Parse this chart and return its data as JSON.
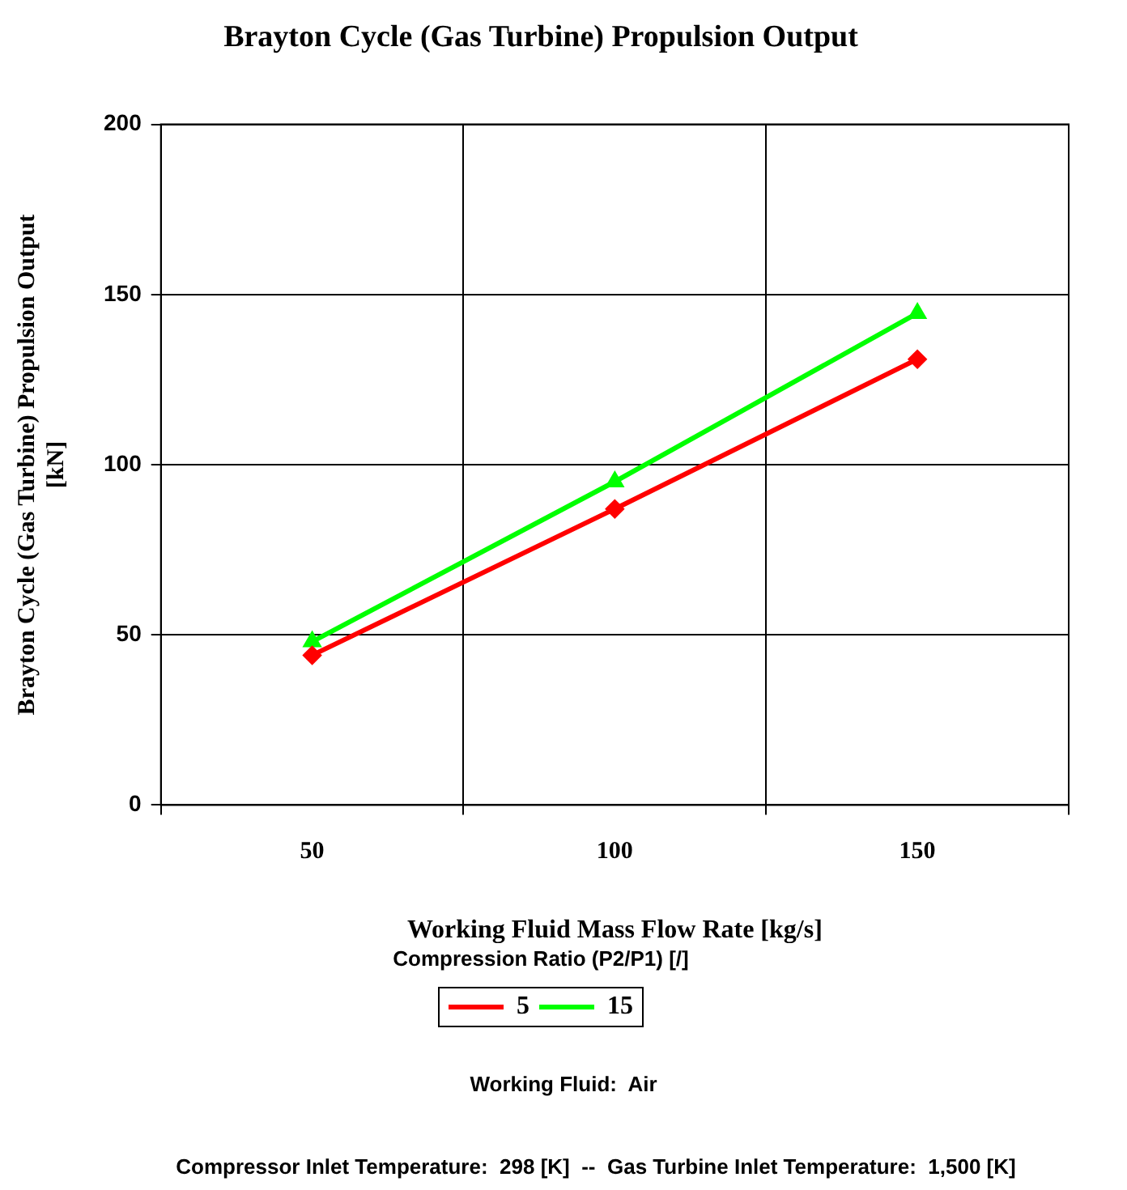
{
  "chart_data": {
    "type": "line",
    "title": "Brayton Cycle (Gas Turbine) Propulsion Output",
    "xlabel": "Working Fluid Mass Flow Rate [kg/s]",
    "ylabel": "Brayton Cycle (Gas Turbine) Propulsion Output [kN]",
    "legend_title": "Compression Ratio (P2/P1) [/]",
    "categories": [
      "50",
      "100",
      "150"
    ],
    "series": [
      {
        "name": "5",
        "color": "#ff0000",
        "marker": "diamond",
        "values": [
          44,
          87,
          131
        ]
      },
      {
        "name": "15",
        "color": "#00ff00",
        "marker": "triangle",
        "values": [
          48,
          95,
          144.5
        ]
      }
    ],
    "ylim": [
      0,
      200
    ],
    "yticks": [
      0,
      50,
      100,
      150,
      200
    ],
    "grid": true,
    "legend": "bottom",
    "annotations": [
      "Working Fluid:  Air",
      "Compressor Inlet Temperature:  298 [K]  --  Gas Turbine Inlet Temperature:  1,500 [K]"
    ]
  }
}
